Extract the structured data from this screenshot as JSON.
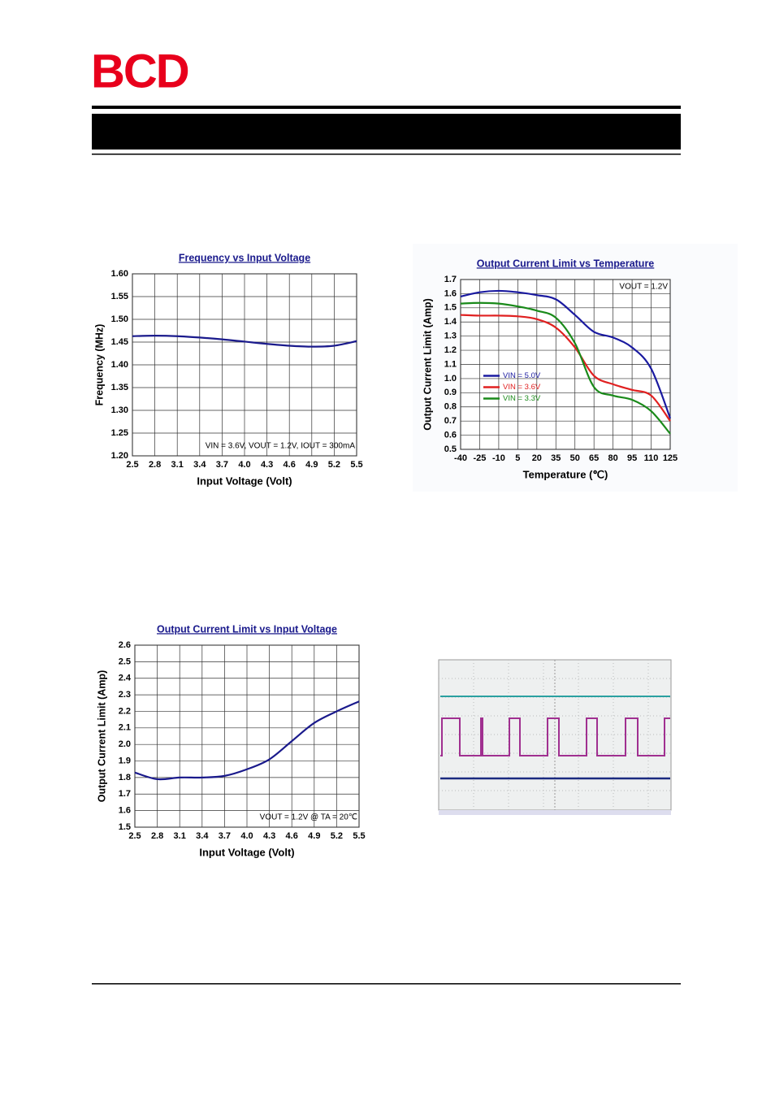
{
  "logo": "BCD",
  "chart_data": [
    {
      "type": "line",
      "title": "Frequency vs Input Voltage",
      "x_label": "Input Voltage (Volt)",
      "y_label": "Frequency (MHz)",
      "annotation": "VIN = 3.6V, VOUT = 1.2V, IOUT = 300mA",
      "x": [
        2.5,
        2.8,
        3.1,
        3.4,
        3.7,
        4.0,
        4.3,
        4.6,
        4.9,
        5.2,
        5.5
      ],
      "values": [
        1.463,
        1.464,
        1.463,
        1.46,
        1.456,
        1.451,
        1.446,
        1.442,
        1.44,
        1.442,
        1.452
      ],
      "color": "#1a1a8c",
      "grid": true,
      "xlim": [
        2.5,
        5.5
      ],
      "xticks": [
        2.5,
        2.8,
        3.1,
        3.4,
        3.7,
        {
          "value": 4,
          "label": "4.0"
        },
        4.3,
        4.6,
        4.9,
        5.2,
        5.5
      ],
      "ylim": [
        1.2,
        1.6
      ],
      "yticks": [
        {
          "value": 1.2,
          "label": "1.20"
        },
        1.25,
        {
          "value": 1.3,
          "label": "1.30"
        },
        1.35,
        {
          "value": 1.4,
          "label": "1.40"
        },
        1.45,
        {
          "value": 1.5,
          "label": "1.50"
        },
        1.55,
        {
          "value": 1.6,
          "label": "1.60"
        }
      ]
    },
    {
      "type": "line",
      "title": "Output Current Limit vs Temperature",
      "x_label": "Temperature (℃)",
      "y_label": "Output Current Limit (Amp)",
      "annotation": "VOUT = 1.2V",
      "legend": "center left",
      "grid": true,
      "x": [
        -40,
        -25,
        -10,
        5,
        20,
        35,
        50,
        65,
        80,
        95,
        110,
        125
      ],
      "series": [
        {
          "name": "VIN = 5.0V",
          "color": "#1a1aa0",
          "values": [
            1.58,
            1.61,
            1.62,
            1.61,
            1.59,
            1.56,
            1.45,
            1.33,
            1.29,
            1.22,
            1.07,
            0.72
          ]
        },
        {
          "name": "VIN = 3.6V",
          "color": "#e02020",
          "values": [
            1.45,
            1.445,
            1.445,
            1.44,
            1.42,
            1.36,
            1.22,
            1.02,
            0.96,
            0.92,
            0.88,
            0.7
          ]
        },
        {
          "name": "VIN = 3.3V",
          "color": "#1a8a1a",
          "values": [
            1.53,
            1.535,
            1.53,
            1.51,
            1.48,
            1.43,
            1.25,
            0.94,
            0.88,
            0.85,
            0.77,
            0.61
          ]
        }
      ],
      "xlim": [
        -40,
        125
      ],
      "xticks": [
        -40,
        -25,
        -10,
        5,
        20,
        35,
        50,
        65,
        80,
        95,
        110,
        125
      ],
      "ylim": [
        0.5,
        1.7
      ],
      "yticks": [
        0.5,
        0.6,
        0.7,
        0.8,
        0.9,
        {
          "value": 1,
          "label": "1.0"
        },
        1.1,
        1.2,
        1.3,
        1.4,
        1.5,
        1.6,
        1.7
      ]
    },
    {
      "type": "line",
      "title": "Output Current Limit vs Input Voltage",
      "x_label": "Input Voltage (Volt)",
      "y_label": "Output Current Limit (Amp)",
      "annotation": "VOUT = 1.2V @ TA = 20℃",
      "x": [
        2.5,
        2.8,
        3.1,
        3.4,
        3.7,
        4.0,
        4.3,
        4.6,
        4.9,
        5.2,
        5.5
      ],
      "values": [
        1.83,
        1.79,
        1.8,
        1.8,
        1.81,
        1.85,
        1.91,
        2.02,
        2.13,
        2.2,
        2.26
      ],
      "color": "#1a1a8c",
      "grid": true,
      "xlim": [
        2.5,
        5.5
      ],
      "xticks": [
        2.5,
        2.8,
        3.1,
        3.4,
        3.7,
        {
          "value": 4,
          "label": "4.0"
        },
        4.3,
        4.6,
        4.9,
        5.2,
        5.5
      ],
      "ylim": [
        1.5,
        2.6
      ],
      "yticks": [
        1.5,
        1.6,
        1.7,
        1.8,
        1.9,
        {
          "value": 2,
          "label": "2.0"
        },
        2.1,
        2.2,
        2.3,
        2.4,
        2.5,
        2.6
      ]
    }
  ]
}
